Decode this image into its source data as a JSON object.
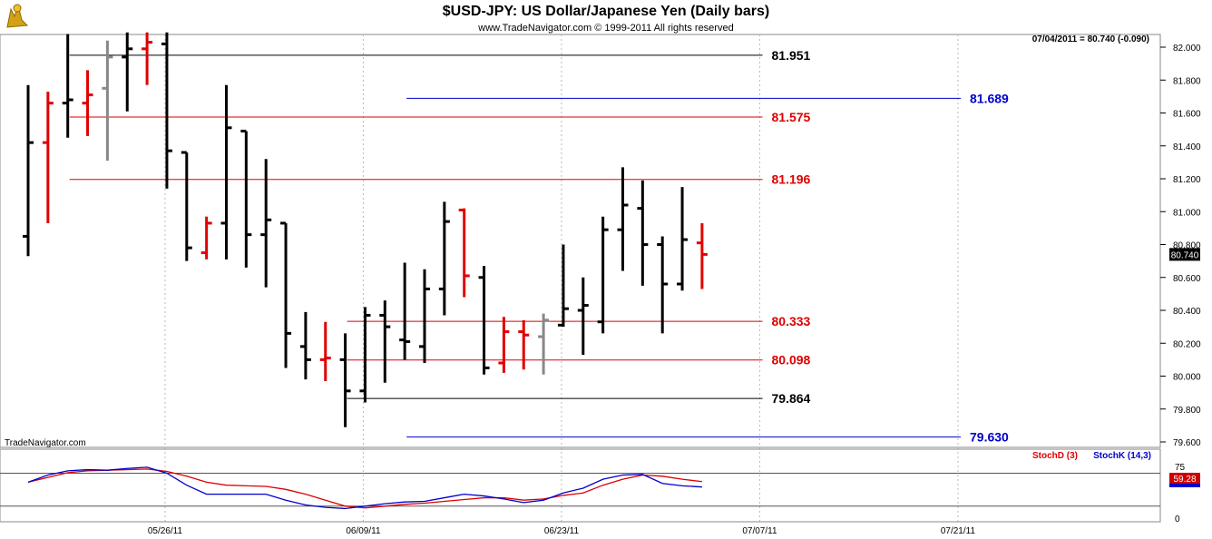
{
  "header": {
    "title": "$USD-JPY:  US Dollar/Japanese Yen  (Daily bars)",
    "copyright": "www.TradeNavigator.com © 1999-2011 All rights reserved",
    "info": "07/04/2011 = 80.740 (-0.090)",
    "watermark": "TradeNavigator.com"
  },
  "chart_data": {
    "type": "ohlc",
    "x_dates": [
      "05/26/11",
      "06/09/11",
      "06/23/11",
      "07/07/11",
      "07/21/11"
    ],
    "price_ticks": [
      "82.000",
      "81.800",
      "81.600",
      "81.400",
      "81.200",
      "81.000",
      "80.800",
      "80.600",
      "80.400",
      "80.200",
      "80.000",
      "79.800",
      "79.600"
    ],
    "ylim": [
      79.56,
      82.09
    ],
    "last_price": "80.740",
    "bars": [
      {
        "x": 0,
        "o": 80.85,
        "h": 81.77,
        "l": 80.73,
        "c": 81.42,
        "color": "black"
      },
      {
        "x": 1,
        "o": 81.42,
        "h": 81.73,
        "l": 80.93,
        "c": 81.66,
        "color": "red"
      },
      {
        "x": 2,
        "o": 81.66,
        "h": 82.08,
        "l": 81.45,
        "c": 81.68,
        "color": "black"
      },
      {
        "x": 3,
        "o": 81.66,
        "h": 81.86,
        "l": 81.46,
        "c": 81.71,
        "color": "red"
      },
      {
        "x": 4,
        "o": 81.75,
        "h": 82.04,
        "l": 81.31,
        "c": 81.94,
        "color": "gray"
      },
      {
        "x": 5,
        "o": 81.94,
        "h": 82.09,
        "l": 81.61,
        "c": 81.99,
        "color": "black"
      },
      {
        "x": 6,
        "o": 81.99,
        "h": 82.09,
        "l": 81.77,
        "c": 82.03,
        "color": "red"
      },
      {
        "x": 7,
        "o": 82.02,
        "h": 82.09,
        "l": 81.14,
        "c": 81.37,
        "color": "black"
      },
      {
        "x": 8,
        "o": 81.36,
        "h": 81.36,
        "l": 80.7,
        "c": 80.78,
        "color": "black"
      },
      {
        "x": 9,
        "o": 80.75,
        "h": 80.97,
        "l": 80.71,
        "c": 80.93,
        "color": "red"
      },
      {
        "x": 10,
        "o": 80.93,
        "h": 81.77,
        "l": 80.71,
        "c": 81.51,
        "color": "black"
      },
      {
        "x": 11,
        "o": 81.49,
        "h": 81.49,
        "l": 80.66,
        "c": 80.86,
        "color": "black"
      },
      {
        "x": 12,
        "o": 80.86,
        "h": 81.32,
        "l": 80.54,
        "c": 80.95,
        "color": "black"
      },
      {
        "x": 13,
        "o": 80.93,
        "h": 80.93,
        "l": 80.05,
        "c": 80.26,
        "color": "black"
      },
      {
        "x": 14,
        "o": 80.18,
        "h": 80.39,
        "l": 79.98,
        "c": 80.1,
        "color": "black"
      },
      {
        "x": 15,
        "o": 80.1,
        "h": 80.33,
        "l": 79.97,
        "c": 80.11,
        "color": "red"
      },
      {
        "x": 16,
        "o": 80.1,
        "h": 80.26,
        "l": 79.69,
        "c": 79.91,
        "color": "black"
      },
      {
        "x": 17,
        "o": 79.91,
        "h": 80.42,
        "l": 79.84,
        "c": 80.37,
        "color": "black"
      },
      {
        "x": 18,
        "o": 80.37,
        "h": 80.46,
        "l": 79.96,
        "c": 80.3,
        "color": "black"
      },
      {
        "x": 19,
        "o": 80.22,
        "h": 80.69,
        "l": 80.1,
        "c": 80.21,
        "color": "black"
      },
      {
        "x": 20,
        "o": 80.18,
        "h": 80.65,
        "l": 80.08,
        "c": 80.53,
        "color": "black"
      },
      {
        "x": 21,
        "o": 80.53,
        "h": 81.06,
        "l": 80.37,
        "c": 80.94,
        "color": "black"
      },
      {
        "x": 22,
        "o": 81.01,
        "h": 81.02,
        "l": 80.48,
        "c": 80.61,
        "color": "red"
      },
      {
        "x": 23,
        "o": 80.6,
        "h": 80.67,
        "l": 80.01,
        "c": 80.05,
        "color": "black"
      },
      {
        "x": 24,
        "o": 80.08,
        "h": 80.36,
        "l": 80.02,
        "c": 80.27,
        "color": "red"
      },
      {
        "x": 25,
        "o": 80.27,
        "h": 80.34,
        "l": 80.04,
        "c": 80.25,
        "color": "red"
      },
      {
        "x": 26,
        "o": 80.24,
        "h": 80.38,
        "l": 80.01,
        "c": 80.34,
        "color": "gray"
      },
      {
        "x": 27,
        "o": 80.31,
        "h": 80.8,
        "l": 80.3,
        "c": 80.41,
        "color": "black"
      },
      {
        "x": 28,
        "o": 80.4,
        "h": 80.6,
        "l": 80.13,
        "c": 80.43,
        "color": "black"
      },
      {
        "x": 29,
        "o": 80.33,
        "h": 80.97,
        "l": 80.26,
        "c": 80.89,
        "color": "black"
      },
      {
        "x": 30,
        "o": 80.89,
        "h": 81.27,
        "l": 80.64,
        "c": 81.04,
        "color": "black"
      },
      {
        "x": 31,
        "o": 81.02,
        "h": 81.19,
        "l": 80.55,
        "c": 80.8,
        "color": "black"
      },
      {
        "x": 32,
        "o": 80.8,
        "h": 80.85,
        "l": 80.26,
        "c": 80.56,
        "color": "black"
      },
      {
        "x": 33,
        "o": 80.56,
        "h": 81.15,
        "l": 80.52,
        "c": 80.83,
        "color": "black"
      },
      {
        "x": 34,
        "o": 80.81,
        "h": 80.93,
        "l": 80.53,
        "c": 80.74,
        "color": "red"
      }
    ],
    "levels": [
      {
        "label": "81.951",
        "value": 81.951,
        "color": "#000000",
        "x0": 2,
        "x1": 36.5
      },
      {
        "label": "81.689",
        "value": 81.689,
        "color": "#0000cc",
        "x0": 19,
        "x1": 46.5
      },
      {
        "label": "81.575",
        "value": 81.575,
        "color": "#dd0000",
        "x0": 2,
        "x1": 36.5
      },
      {
        "label": "81.196",
        "value": 81.196,
        "color": "#dd0000",
        "x0": 2,
        "x1": 36.5
      },
      {
        "label": "80.333",
        "value": 80.333,
        "color": "#dd0000",
        "x0": 16,
        "x1": 36.5
      },
      {
        "label": "80.098",
        "value": 80.098,
        "color": "#dd0000",
        "x0": 16,
        "x1": 36.5
      },
      {
        "label": "79.864",
        "value": 79.864,
        "color": "#000000",
        "x0": 16,
        "x1": 36.5
      },
      {
        "label": "79.630",
        "value": 79.63,
        "color": "#0000cc",
        "x0": 19,
        "x1": 46.5
      }
    ],
    "stoch": {
      "legend_d": "StochD (3)",
      "legend_k": "StochK (14,3)",
      "tick_top": "75",
      "tick_bottom": "0",
      "value_label": "59.28",
      "ylim": [
        0,
        100
      ],
      "line_top": 75,
      "line_bottom": 20,
      "d": [
        60,
        68,
        76,
        79,
        80,
        81,
        82,
        78,
        70,
        60,
        55,
        54,
        53,
        48,
        40,
        30,
        20,
        17,
        20,
        23,
        25,
        28,
        31,
        34,
        34,
        30,
        32,
        38,
        42,
        55,
        65,
        72,
        70,
        65,
        61
      ],
      "k": [
        60,
        72,
        79,
        81,
        80,
        83,
        85,
        75,
        55,
        40,
        40,
        40,
        40,
        30,
        22,
        18,
        16,
        20,
        24,
        27,
        28,
        34,
        40,
        37,
        32,
        26,
        30,
        42,
        50,
        65,
        72,
        73,
        58,
        54,
        52
      ]
    }
  }
}
